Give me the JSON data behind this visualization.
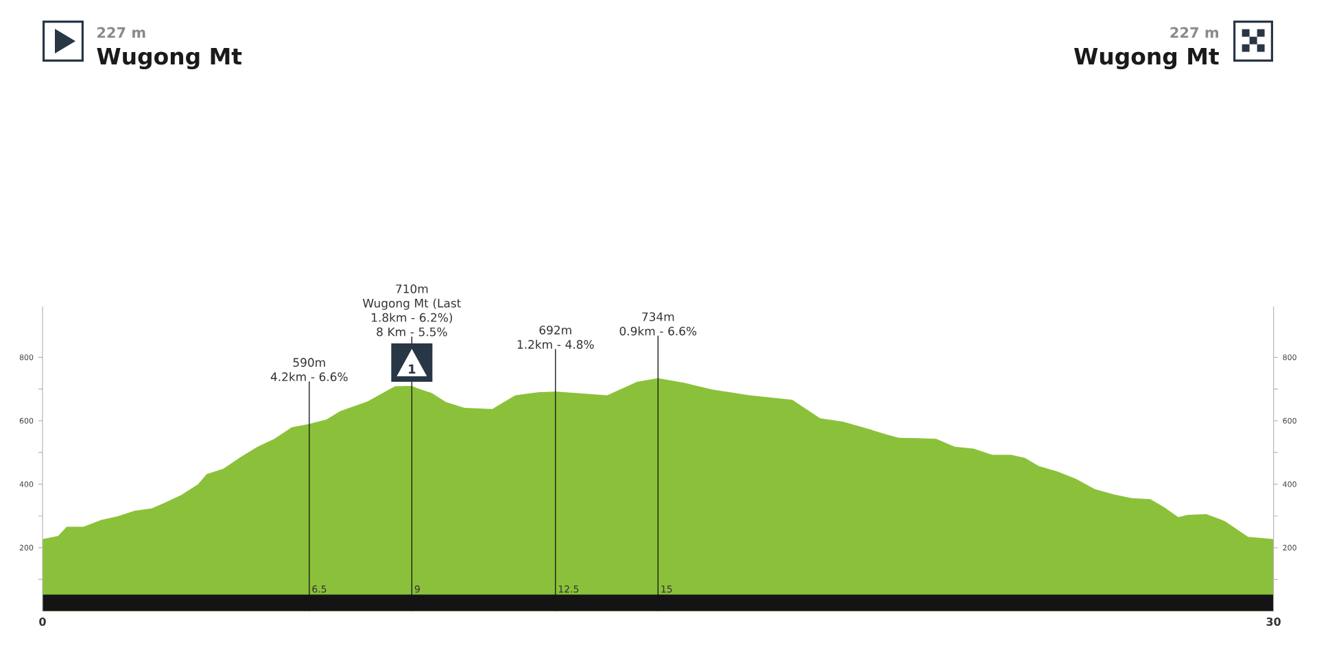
{
  "chart_data": {
    "type": "area",
    "color": "#8bc13a",
    "x": [
      0,
      0.38,
      0.59,
      1.0,
      1.42,
      1.83,
      2.24,
      2.66,
      2.97,
      3.38,
      3.79,
      4.0,
      4.41,
      4.83,
      5.24,
      5.65,
      6.07,
      6.5,
      6.92,
      7.25,
      7.92,
      8.59,
      9.0,
      9.15,
      9.49,
      9.83,
      10.28,
      10.96,
      11.52,
      12.09,
      12.5,
      13.03,
      13.76,
      14.49,
      15.0,
      15.66,
      16.34,
      17.24,
      18.27,
      18.95,
      19.51,
      20.19,
      20.53,
      20.87,
      21.33,
      21.78,
      22.23,
      22.69,
      23.14,
      23.6,
      23.94,
      24.28,
      24.74,
      25.18,
      25.64,
      26.1,
      26.54,
      27.0,
      27.34,
      27.68,
      27.9,
      28.36,
      28.81,
      29.38,
      30
    ],
    "values": [
      227,
      237,
      266,
      266,
      287,
      299,
      316,
      324,
      341,
      366,
      400,
      432,
      449,
      486,
      518,
      543,
      579,
      590,
      604,
      630,
      661,
      709,
      710,
      702,
      687,
      659,
      641,
      637,
      680,
      690,
      692,
      687,
      680,
      723,
      734,
      719,
      698,
      680,
      666,
      608,
      597,
      572,
      558,
      546,
      545,
      543,
      518,
      512,
      493,
      493,
      483,
      457,
      440,
      417,
      385,
      368,
      356,
      353,
      327,
      296,
      303,
      306,
      284,
      234,
      227
    ],
    "xlim": [
      0,
      30
    ],
    "xticks": [
      0,
      30
    ],
    "ylim": [
      0,
      960
    ],
    "yticks": [
      {
        "value": 100,
        "label": null
      },
      200,
      {
        "value": 300,
        "label": null
      },
      400,
      {
        "value": 500,
        "label": null
      },
      600,
      {
        "value": 700,
        "label": null
      },
      800
    ],
    "y2lim": [
      0,
      960
    ],
    "y2ticks": [
      {
        "value": 100,
        "label": null
      },
      200,
      {
        "value": 300,
        "label": null
      },
      400,
      {
        "value": 500,
        "label": null
      },
      600,
      {
        "value": 700,
        "label": null
      },
      800
    ],
    "ref_lines": [
      {
        "axis": "x",
        "value": 6.5,
        "label": "590m\n4.2km - 6.6%",
        "color": "#1c1c1c"
      },
      {
        "axis": "x",
        "value": 9,
        "label": "710m\nWugong Mt (Last\n1.8km - 6.2%)\n8 Km - 5.5%",
        "color": "#1c1c1c"
      },
      {
        "axis": "x",
        "value": 12.5,
        "label": "692m\n1.2km - 4.8%",
        "color": "#1c1c1c"
      },
      {
        "axis": "x",
        "value": 15,
        "label": "734m\n0.9km - 6.6%",
        "color": "#1c1c1c"
      }
    ],
    "annotations": [
      "227 m",
      "Wugong Mt",
      "227 m",
      "Wugong Mt",
      {
        "text": "1",
        "x": 9,
        "y": 710
      },
      {
        "text": "6.5",
        "x": 6.5
      },
      {
        "text": "9",
        "x": 9
      },
      {
        "text": "12.5",
        "x": 12.5
      },
      {
        "text": "15",
        "x": 15
      }
    ]
  }
}
